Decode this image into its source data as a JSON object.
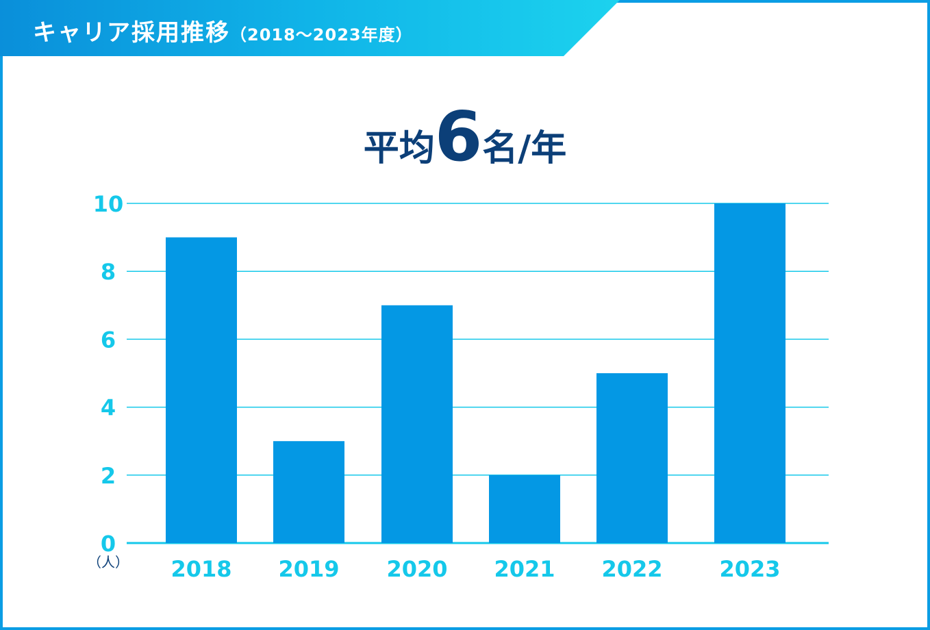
{
  "header": {
    "title": "キャリア採用推移",
    "subtitle": "（2018〜2023年度）"
  },
  "summary": {
    "prefix": "平均",
    "value": "6",
    "suffix": "名/年"
  },
  "colors": {
    "bar": "#0498e4",
    "axis_text": "#15c8ea",
    "grid": "#15c8ea",
    "frame": "#0b9de4",
    "headline": "#0c3f78"
  },
  "chart_data": {
    "type": "bar",
    "categories": [
      "2018",
      "2019",
      "2020",
      "2021",
      "2022",
      "2023"
    ],
    "values": [
      9,
      3,
      7,
      2,
      5,
      10
    ],
    "ylim": [
      0,
      10
    ],
    "yticks": [
      "0",
      "2",
      "4",
      "6",
      "8",
      "10"
    ],
    "unit_label": "（人）",
    "grid": true
  }
}
